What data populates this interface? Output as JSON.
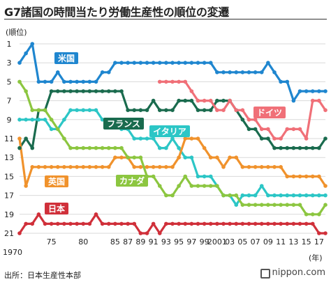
{
  "title": "G7諸国の時間当たり労働生産性の順位の変遷",
  "y_unit_label": "(順位)",
  "x_unit_label": "(年)",
  "source": "出所：日本生産性本部",
  "brand": "nippon.com",
  "chart_data": {
    "type": "line",
    "ylabel": "順位",
    "xlabel": "年",
    "ylim": [
      21,
      1
    ],
    "y_ticks": [
      1,
      3,
      5,
      7,
      9,
      11,
      13,
      15,
      17,
      19,
      21
    ],
    "x": [
      1970,
      1971,
      1972,
      1973,
      1974,
      1975,
      1976,
      1977,
      1978,
      1979,
      1980,
      1981,
      1982,
      1983,
      1984,
      1985,
      1986,
      1987,
      1988,
      1989,
      1990,
      1991,
      1992,
      1993,
      1994,
      1995,
      1996,
      1997,
      1998,
      1999,
      2000,
      2001,
      2002,
      2003,
      2004,
      2005,
      2006,
      2007,
      2008,
      2009,
      2010,
      2011,
      2012,
      2013,
      2014,
      2015,
      2016,
      2017,
      2018
    ],
    "x_tick_labels": [
      {
        "year": 1975,
        "label": "75"
      },
      {
        "year": 1980,
        "label": "80"
      },
      {
        "year": 1985,
        "label": "85"
      },
      {
        "year": 1987,
        "label": "87"
      },
      {
        "year": 1989,
        "label": "89"
      },
      {
        "year": 1991,
        "label": "91"
      },
      {
        "year": 1993,
        "label": "93"
      },
      {
        "year": 1995,
        "label": "95"
      },
      {
        "year": 1997,
        "label": "97"
      },
      {
        "year": 1999,
        "label": "99"
      },
      {
        "year": 2001,
        "label": "2001"
      },
      {
        "year": 2003,
        "label": "03"
      },
      {
        "year": 2005,
        "label": "05"
      },
      {
        "year": 2007,
        "label": "07"
      },
      {
        "year": 2009,
        "label": "09"
      },
      {
        "year": 2011,
        "label": "11"
      },
      {
        "year": 2013,
        "label": "13"
      },
      {
        "year": 2015,
        "label": "15"
      },
      {
        "year": 2017,
        "label": "17"
      }
    ],
    "x_start_label": "1970",
    "series": [
      {
        "name": "米国",
        "color": "#1f86cf",
        "values": [
          3,
          2,
          1,
          5,
          5,
          5,
          4,
          5,
          5,
          5,
          5,
          5,
          5,
          4,
          4,
          3,
          3,
          3,
          3,
          3,
          3,
          3,
          3,
          3,
          3,
          3,
          3,
          3,
          3,
          3,
          3,
          4,
          4,
          4,
          4,
          4,
          4,
          4,
          4,
          3,
          4,
          5,
          5,
          7,
          6,
          6,
          6,
          6,
          6
        ]
      },
      {
        "name": "フランス",
        "color": "#1a6b4e",
        "values": [
          12,
          11,
          12,
          8,
          8,
          6,
          6,
          6,
          6,
          6,
          6,
          6,
          6,
          6,
          6,
          6,
          6,
          8,
          8,
          8,
          8,
          7,
          8,
          8,
          8,
          7,
          7,
          7,
          8,
          8,
          8,
          7,
          7,
          7,
          8,
          9,
          10,
          10,
          11,
          11,
          12,
          12,
          12,
          12,
          12,
          12,
          12,
          12,
          11
        ]
      },
      {
        "name": "ドイツ",
        "color": "#f07078",
        "values": [
          null,
          null,
          null,
          null,
          null,
          null,
          null,
          null,
          null,
          null,
          null,
          null,
          null,
          null,
          null,
          null,
          null,
          null,
          null,
          null,
          null,
          null,
          5,
          5,
          5,
          5,
          5,
          6,
          7,
          7,
          7,
          8,
          8,
          7,
          8,
          8,
          9,
          9,
          10,
          10,
          11,
          11,
          10,
          10,
          10,
          11,
          7,
          7,
          8
        ]
      },
      {
        "name": "イタリア",
        "color": "#2cc6c6",
        "values": [
          9,
          9,
          9,
          9,
          9,
          10,
          10,
          9,
          8,
          8,
          8,
          8,
          8,
          9,
          9,
          9,
          10,
          10,
          11,
          11,
          11,
          11,
          12,
          12,
          11,
          12,
          13,
          13,
          15,
          15,
          15,
          16,
          17,
          17,
          18,
          17,
          17,
          17,
          16,
          17,
          17,
          17,
          17,
          17,
          17,
          17,
          17,
          17,
          17
        ]
      },
      {
        "name": "英国",
        "color": "#f0922c",
        "values": [
          11,
          16,
          14,
          14,
          14,
          14,
          14,
          14,
          14,
          14,
          14,
          14,
          14,
          14,
          14,
          13,
          13,
          13,
          14,
          14,
          14,
          14,
          14,
          14,
          14,
          13,
          11,
          11,
          11,
          12,
          13,
          13,
          14,
          13,
          13,
          14,
          14,
          14,
          14,
          14,
          14,
          14,
          15,
          15,
          15,
          15,
          15,
          15,
          16
        ]
      },
      {
        "name": "カナダ",
        "color": "#8cc640",
        "values": [
          5,
          6,
          8,
          8,
          8,
          9,
          10,
          11,
          12,
          12,
          12,
          12,
          12,
          12,
          12,
          12,
          12,
          13,
          13,
          13,
          15,
          15,
          16,
          17,
          17,
          16,
          15,
          16,
          16,
          16,
          16,
          16,
          17,
          17,
          17,
          18,
          18,
          18,
          18,
          18,
          18,
          18,
          18,
          18,
          18,
          19,
          19,
          19,
          18
        ]
      },
      {
        "name": "日本",
        "color": "#d0303a",
        "values": [
          21,
          20,
          20,
          19,
          20,
          20,
          20,
          20,
          20,
          20,
          20,
          20,
          19,
          20,
          20,
          20,
          20,
          20,
          20,
          21,
          21,
          20,
          21,
          20,
          20,
          20,
          20,
          20,
          20,
          20,
          20,
          20,
          20,
          20,
          20,
          20,
          20,
          20,
          20,
          20,
          20,
          20,
          20,
          20,
          20,
          20,
          20,
          21,
          21
        ]
      }
    ]
  },
  "labels": [
    {
      "text": "米国",
      "series": "米国"
    },
    {
      "text": "フランス",
      "series": "フランス"
    },
    {
      "text": "ドイツ",
      "series": "ドイツ"
    },
    {
      "text": "イタリア",
      "series": "イタリア"
    },
    {
      "text": "英国",
      "series": "英国"
    },
    {
      "text": "カナダ",
      "series": "カナダ"
    },
    {
      "text": "日本",
      "series": "日本"
    }
  ]
}
